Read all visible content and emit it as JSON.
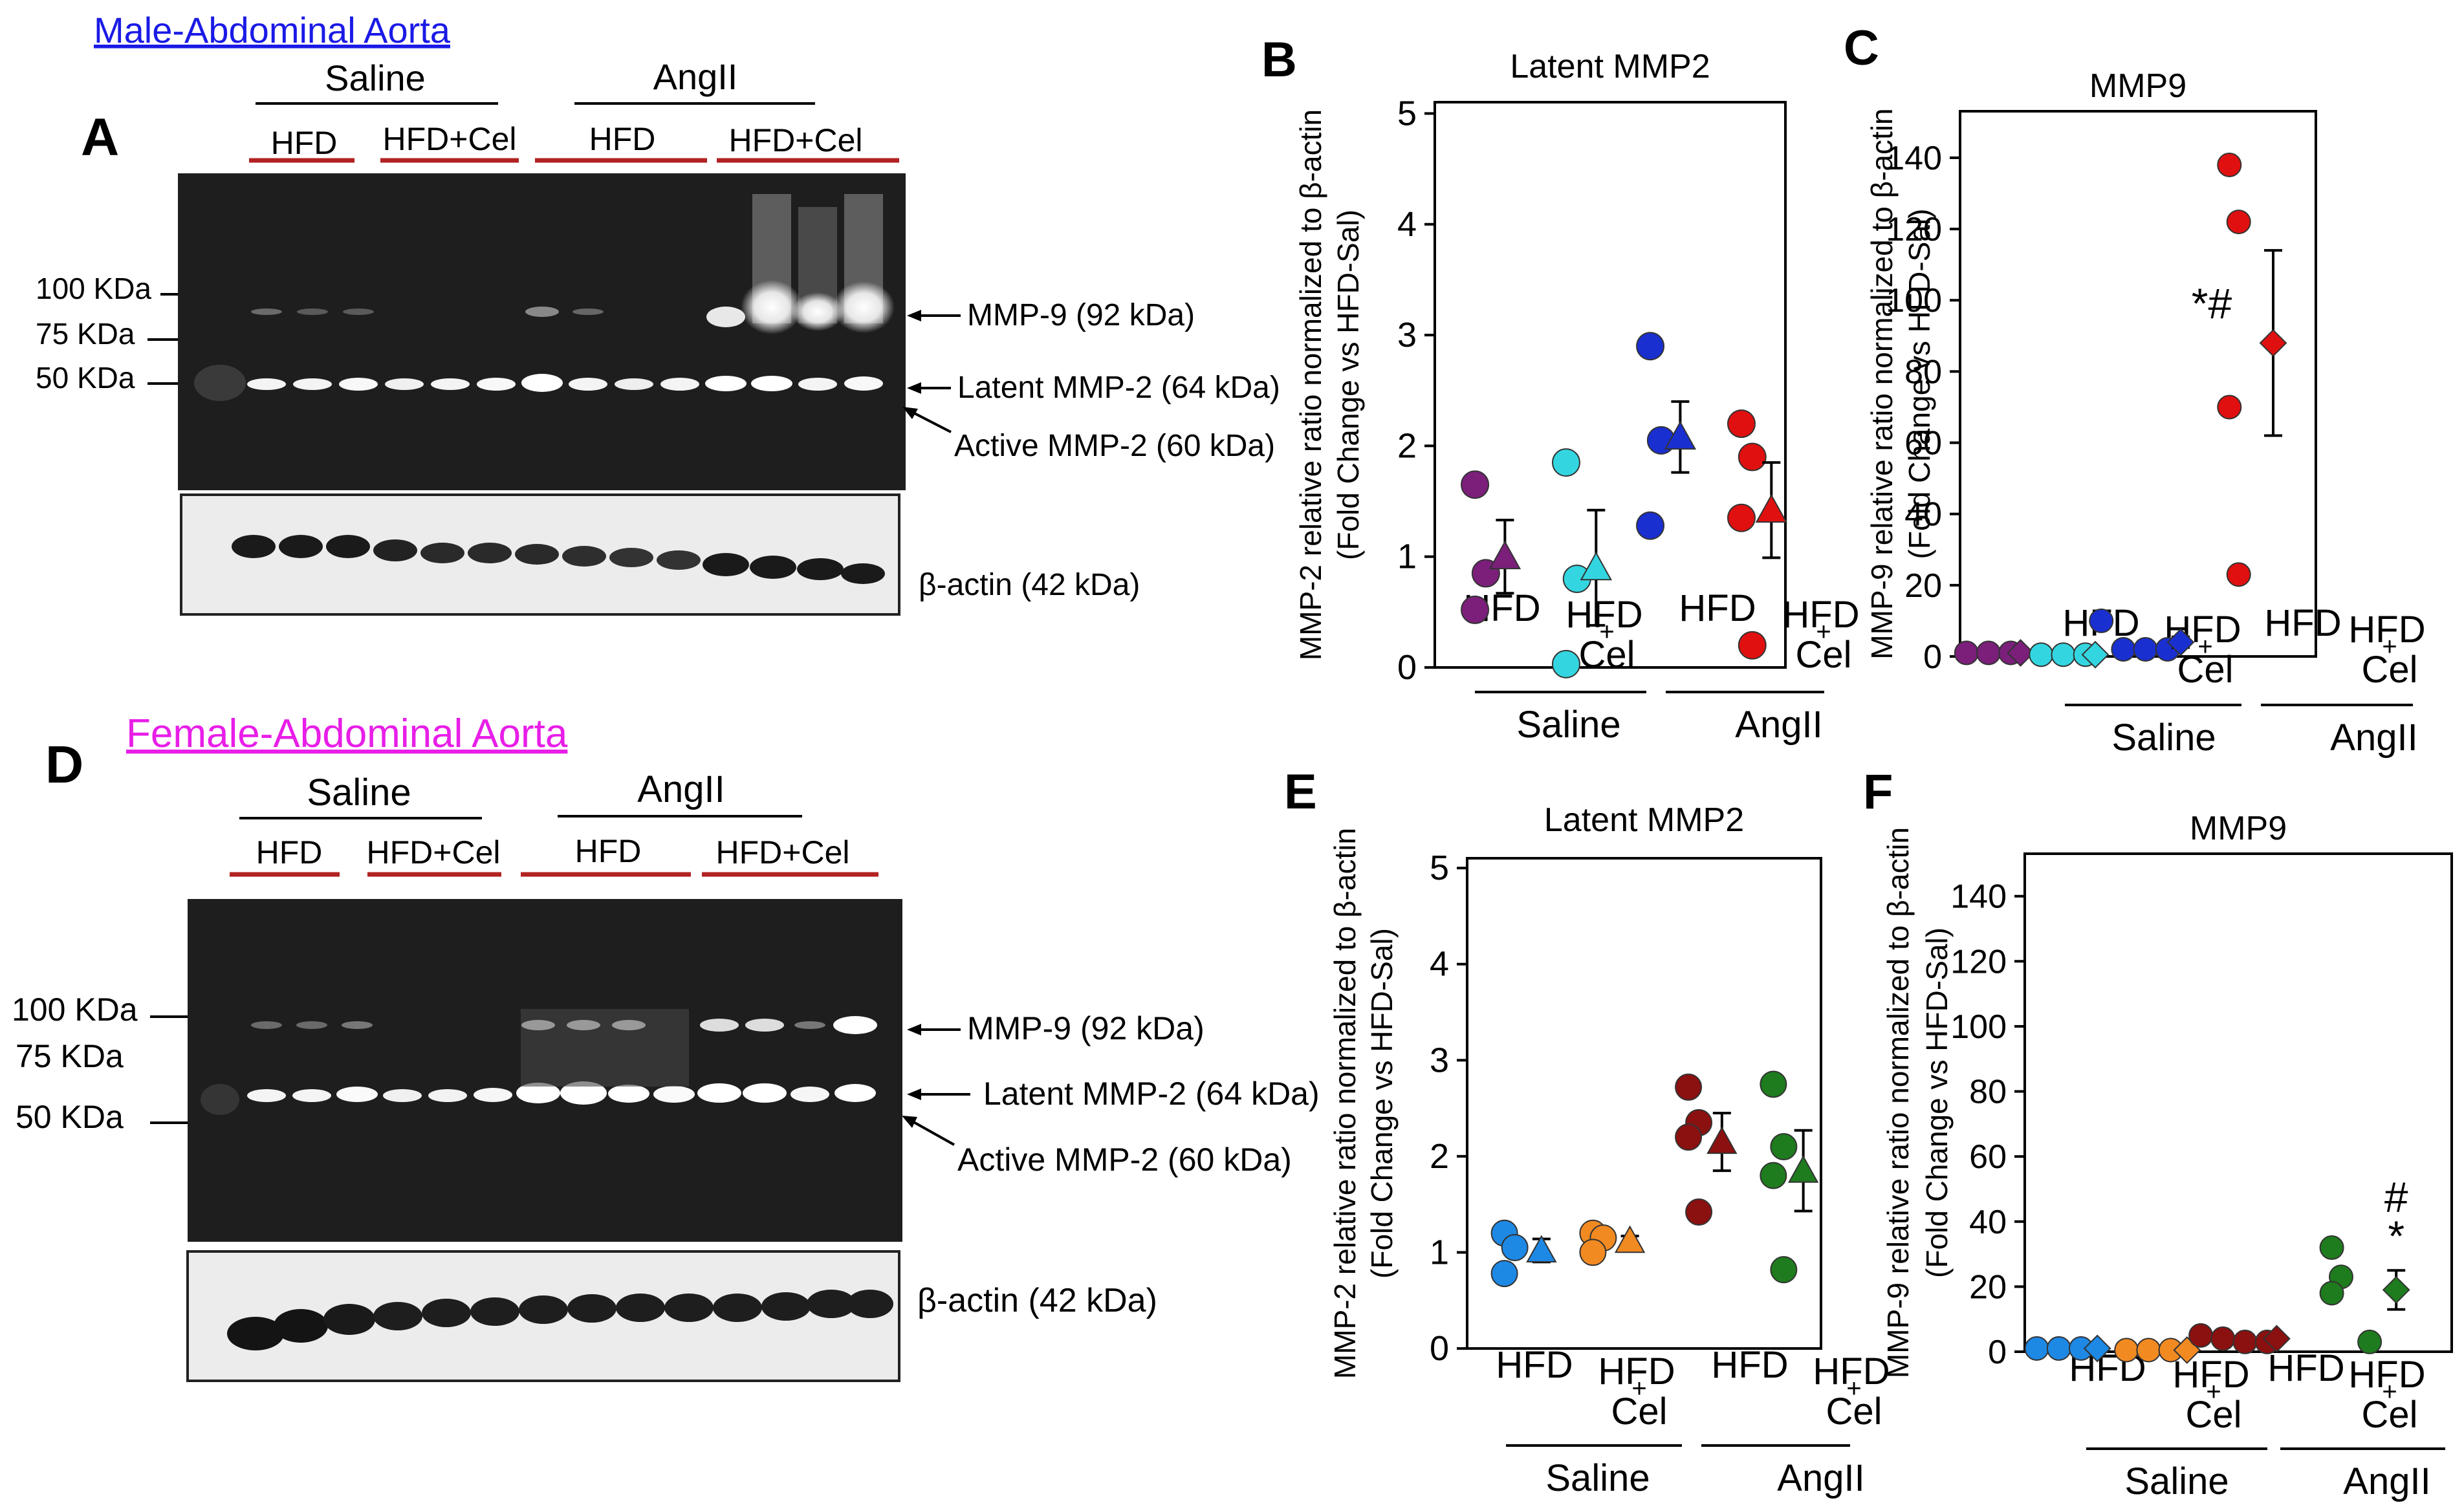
{
  "colors": {
    "male_title": "#1a1ae6",
    "female_title": "#e81ee8",
    "red_line": "#b22222",
    "blot_bg": "#1e1e1e",
    "actin_bg": "#ececec"
  },
  "panelA": {
    "letter": "A",
    "title": "Male-Abdominal  Aorta",
    "saline": "Saline",
    "angii": "AngII",
    "groups": [
      "HFD",
      "HFD+Cel",
      "HFD",
      "HFD+Cel"
    ],
    "markers": [
      "100 KDa",
      "75 KDa",
      "50 KDa"
    ],
    "bands": [
      "MMP-9 (92 kDa)",
      "Latent MMP-2 (64 kDa)",
      "Active MMP-2 (60 kDa)"
    ],
    "actin": "β-actin (42 kDa)"
  },
  "panelD": {
    "letter": "D",
    "title": "Female-Abdominal Aorta",
    "saline": "Saline",
    "angii": "AngII",
    "groups": [
      "HFD",
      "HFD+Cel",
      "HFD",
      "HFD+Cel"
    ],
    "markers": [
      "100 KDa",
      "75 KDa",
      "50 KDa"
    ],
    "bands": [
      "MMP-9  (92 kDa)",
      "Latent MMP-2 (64 kDa)",
      "Active MMP-2 (60 kDa)"
    ],
    "actin": "β-actin (42 kDa)"
  },
  "chart_data": [
    {
      "id": "B",
      "type": "scatter",
      "title": "Latent MMP2",
      "ylabel_line1": "MMP-2 relative ratio normalized to β-actin",
      "ylabel_line2": "(Fold Change vs HFD-Sal)",
      "ylim": [
        0,
        5
      ],
      "yticks": [
        0,
        1,
        2,
        3,
        4,
        5
      ],
      "categories": [
        "HFD",
        "HFD+Cel",
        "HFD",
        "HFD+Cel"
      ],
      "treatments": [
        "Saline",
        "AngII"
      ],
      "series": [
        {
          "name": "Saline HFD",
          "color": "#7b1f7b",
          "points": [
            1.65,
            0.85,
            0.52
          ],
          "mean": 1.0,
          "sem": 0.33,
          "marker": "triangle"
        },
        {
          "name": "Saline HFD+Cel",
          "color": "#33d6e0",
          "points": [
            1.85,
            0.8,
            0.03
          ],
          "mean": 0.9,
          "sem": 0.52,
          "marker": "triangle"
        },
        {
          "name": "AngII HFD",
          "color": "#1a2fd0",
          "points": [
            2.9,
            2.05,
            1.28
          ],
          "mean": 2.08,
          "sem": 0.32,
          "marker": "triangle"
        },
        {
          "name": "AngII HFD+Cel",
          "color": "#e01010",
          "points": [
            2.2,
            1.9,
            1.35,
            0.2
          ],
          "mean": 1.42,
          "sem": 0.43,
          "marker": "triangle"
        }
      ],
      "annotations": []
    },
    {
      "id": "C",
      "type": "scatter",
      "title": "MMP9",
      "ylabel_line1": "MMP-9 relative ratio normalized to β-actin",
      "ylabel_line2": "(Fold Change vs HFD-Sal)",
      "ylim": [
        0,
        150
      ],
      "yticks": [
        0,
        20,
        40,
        60,
        80,
        100,
        120,
        140
      ],
      "categories": [
        "HFD",
        "HFD+Cel",
        "HFD",
        "HFD+Cel"
      ],
      "treatments": [
        "Saline",
        "AngII"
      ],
      "series": [
        {
          "name": "Saline HFD",
          "color": "#7b1f7b",
          "points": [
            1,
            1,
            1
          ],
          "mean": 1,
          "sem": 0,
          "marker": "diamond"
        },
        {
          "name": "Saline HFD+Cel",
          "color": "#33d6e0",
          "points": [
            0.5,
            0.5,
            0.5
          ],
          "mean": 0.5,
          "sem": 0,
          "marker": "diamond"
        },
        {
          "name": "AngII HFD",
          "color": "#1a2fd0",
          "points": [
            10,
            2,
            2,
            2
          ],
          "mean": 4,
          "sem": 1.5,
          "marker": "diamond"
        },
        {
          "name": "AngII HFD+Cel",
          "color": "#e01010",
          "points": [
            138,
            122,
            70,
            23
          ],
          "mean": 88,
          "sem": 26,
          "marker": "diamond"
        }
      ],
      "annotations": [
        {
          "text": "*#",
          "category_index": 3,
          "y": 95
        }
      ]
    },
    {
      "id": "E",
      "type": "scatter",
      "title": "Latent MMP2",
      "ylabel_line1": "MMP-2 relative ratio normalized to β-actin",
      "ylabel_line2": "(Fold Change vs HFD-Sal)",
      "ylim": [
        0,
        5
      ],
      "yticks": [
        0,
        1,
        2,
        3,
        4,
        5
      ],
      "categories": [
        "HFD",
        "HFD+Cel",
        "HFD",
        "HFD+Cel"
      ],
      "treatments": [
        "Saline",
        "AngII"
      ],
      "series": [
        {
          "name": "Saline HFD",
          "color": "#1e88e5",
          "points": [
            1.2,
            1.05,
            0.78
          ],
          "mean": 1.02,
          "sem": 0.12,
          "marker": "triangle"
        },
        {
          "name": "Saline HFD+Cel",
          "color": "#f28a22",
          "points": [
            1.2,
            1.15,
            1.0
          ],
          "mean": 1.12,
          "sem": 0.05,
          "marker": "triangle"
        },
        {
          "name": "AngII HFD",
          "color": "#8b1010",
          "points": [
            2.72,
            2.35,
            2.2,
            1.42
          ],
          "mean": 2.15,
          "sem": 0.3,
          "marker": "triangle"
        },
        {
          "name": "AngII HFD+Cel",
          "color": "#1e7b1e",
          "points": [
            2.75,
            2.1,
            1.8,
            0.82
          ],
          "mean": 1.85,
          "sem": 0.42,
          "marker": "triangle"
        }
      ],
      "annotations": []
    },
    {
      "id": "F",
      "type": "scatter",
      "title": "MMP9",
      "ylabel_line1": "MMP-9 relative ratio normalized to β-actin",
      "ylabel_line2": "(Fold Change vs HFD-Sal)",
      "ylim": [
        0,
        150
      ],
      "yticks": [
        0,
        20,
        40,
        60,
        80,
        100,
        120,
        140
      ],
      "categories": [
        "HFD",
        "HFD+Cel",
        "HFD",
        "HFD+Cel"
      ],
      "treatments": [
        "Saline",
        "AngII"
      ],
      "series": [
        {
          "name": "Saline HFD",
          "color": "#1e88e5",
          "points": [
            1,
            1,
            1
          ],
          "mean": 1,
          "sem": 0,
          "marker": "diamond"
        },
        {
          "name": "Saline HFD+Cel",
          "color": "#f28a22",
          "points": [
            0.5,
            0.5,
            0.5
          ],
          "mean": 0.5,
          "sem": 0,
          "marker": "diamond"
        },
        {
          "name": "AngII HFD",
          "color": "#8b1010",
          "points": [
            5,
            4,
            3,
            3
          ],
          "mean": 4,
          "sem": 0.8,
          "marker": "diamond"
        },
        {
          "name": "AngII HFD+Cel",
          "color": "#1e7b1e",
          "points": [
            32,
            23,
            18,
            3
          ],
          "mean": 19,
          "sem": 6,
          "marker": "diamond"
        }
      ],
      "annotations": [
        {
          "text": "#",
          "category_index": 3,
          "y": 43
        },
        {
          "text": "*",
          "category_index": 3,
          "y": 31
        }
      ]
    }
  ]
}
